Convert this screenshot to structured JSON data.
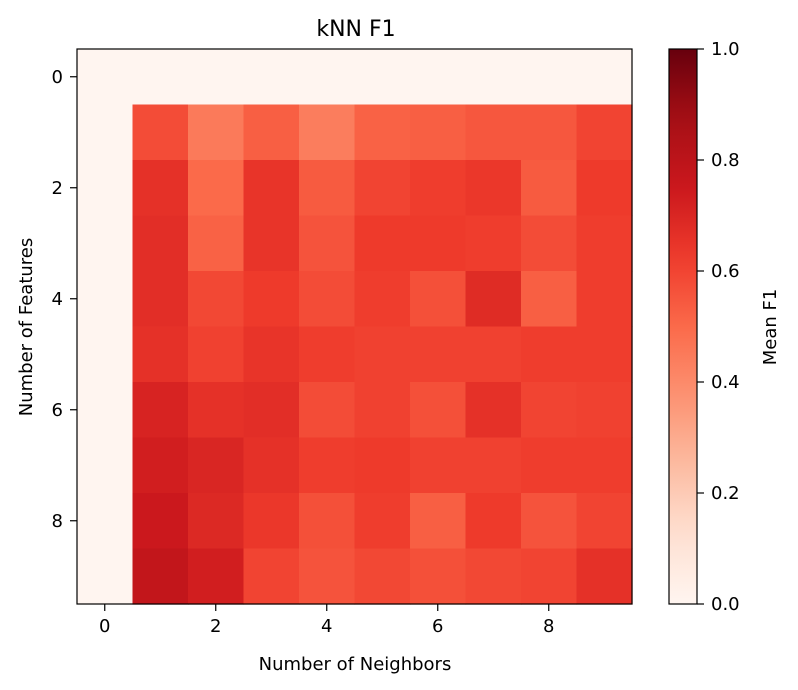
{
  "chart_data": {
    "type": "heatmap",
    "title": "kNN F1",
    "xlabel": "Number of Neighbors",
    "ylabel": "Number of Features",
    "colorbar_label": "Mean F1",
    "colormap": "Reds",
    "x": [
      0,
      1,
      2,
      3,
      4,
      5,
      6,
      7,
      8,
      9
    ],
    "y": [
      0,
      1,
      2,
      3,
      4,
      5,
      6,
      7,
      8,
      9
    ],
    "xticks": [
      "0",
      "2",
      "4",
      "6",
      "8"
    ],
    "yticks": [
      "0",
      "2",
      "4",
      "6",
      "8"
    ],
    "colorbar_ticks": [
      "0.0",
      "0.2",
      "0.4",
      "0.6",
      "0.8",
      "1.0"
    ],
    "vmin": 0.0,
    "vmax": 1.0,
    "values": [
      [
        0,
        0,
        0,
        0,
        0,
        0,
        0,
        0,
        0,
        0
      ],
      [
        0,
        0.58,
        0.45,
        0.53,
        0.44,
        0.52,
        0.53,
        0.55,
        0.55,
        0.6
      ],
      [
        0,
        0.66,
        0.5,
        0.65,
        0.54,
        0.6,
        0.62,
        0.64,
        0.54,
        0.63
      ],
      [
        0,
        0.67,
        0.52,
        0.65,
        0.56,
        0.63,
        0.63,
        0.62,
        0.58,
        0.62
      ],
      [
        0,
        0.67,
        0.59,
        0.63,
        0.58,
        0.62,
        0.57,
        0.68,
        0.53,
        0.62
      ],
      [
        0,
        0.66,
        0.61,
        0.65,
        0.62,
        0.61,
        0.61,
        0.61,
        0.62,
        0.62
      ],
      [
        0,
        0.71,
        0.66,
        0.67,
        0.58,
        0.61,
        0.57,
        0.66,
        0.6,
        0.61
      ],
      [
        0,
        0.73,
        0.7,
        0.66,
        0.62,
        0.63,
        0.61,
        0.61,
        0.62,
        0.62
      ],
      [
        0,
        0.75,
        0.69,
        0.64,
        0.57,
        0.62,
        0.53,
        0.63,
        0.56,
        0.6
      ],
      [
        0,
        0.78,
        0.73,
        0.6,
        0.56,
        0.59,
        0.57,
        0.59,
        0.6,
        0.66
      ]
    ]
  }
}
